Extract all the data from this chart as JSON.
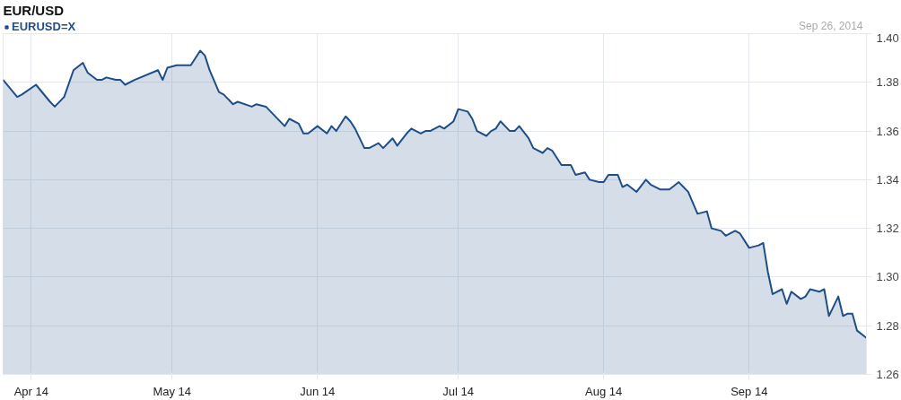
{
  "chart_data": {
    "type": "area",
    "title": "EUR/USD",
    "annotations": [
      "Sep 26, 2014"
    ],
    "legend": "top left",
    "grid": true,
    "xlim": [
      "2014-03-26",
      "2014-09-26"
    ],
    "xticks": [
      {
        "value": "2014-04-01",
        "label": "Apr 14"
      },
      {
        "value": "2014-05-01",
        "label": "May 14"
      },
      {
        "value": "2014-06-01",
        "label": "Jun 14"
      },
      {
        "value": "2014-07-01",
        "label": "Jul 14"
      },
      {
        "value": "2014-08-01",
        "label": "Aug 14"
      },
      {
        "value": "2014-09-01",
        "label": "Sep 14"
      }
    ],
    "ylim": [
      1.26,
      1.4
    ],
    "yticks": [
      1.26,
      1.28,
      {
        "value": 1.3,
        "label": "1.30"
      },
      1.32,
      1.34,
      1.36,
      1.38,
      {
        "value": 1.4,
        "label": "1.40"
      }
    ],
    "series": [
      {
        "name": "EURUSD=X",
        "color": "#1f4e87",
        "x": [
          "2014-03-26",
          "2014-03-29",
          "2014-03-30",
          "2014-04-02",
          "2014-04-05",
          "2014-04-06",
          "2014-04-08",
          "2014-04-10",
          "2014-04-12",
          "2014-04-13",
          "2014-04-15",
          "2014-04-16",
          "2014-04-17",
          "2014-04-19",
          "2014-04-20",
          "2014-04-21",
          "2014-04-23",
          "2014-04-28",
          "2014-04-29",
          "2014-04-30",
          "2014-05-02",
          "2014-05-05",
          "2014-05-07",
          "2014-05-08",
          "2014-05-09",
          "2014-05-11",
          "2014-05-12",
          "2014-05-14",
          "2014-05-15",
          "2014-05-18",
          "2014-05-19",
          "2014-05-21",
          "2014-05-25",
          "2014-05-26",
          "2014-05-28",
          "2014-05-29",
          "2014-05-30",
          "2014-06-01",
          "2014-06-03",
          "2014-06-04",
          "2014-06-05",
          "2014-06-07",
          "2014-06-08",
          "2014-06-09",
          "2014-06-11",
          "2014-06-12",
          "2014-06-14",
          "2014-06-15",
          "2014-06-17",
          "2014-06-18",
          "2014-06-20",
          "2014-06-21",
          "2014-06-23",
          "2014-06-24",
          "2014-06-25",
          "2014-06-27",
          "2014-06-28",
          "2014-06-30",
          "2014-07-01",
          "2014-07-03",
          "2014-07-04",
          "2014-07-05",
          "2014-07-07",
          "2014-07-08",
          "2014-07-09",
          "2014-07-10",
          "2014-07-12",
          "2014-07-13",
          "2014-07-14",
          "2014-07-16",
          "2014-07-17",
          "2014-07-19",
          "2014-07-20",
          "2014-07-21",
          "2014-07-23",
          "2014-07-25",
          "2014-07-26",
          "2014-07-28",
          "2014-07-29",
          "2014-07-31",
          "2014-08-01",
          "2014-08-02",
          "2014-08-04",
          "2014-08-05",
          "2014-08-06",
          "2014-08-08",
          "2014-08-10",
          "2014-08-11",
          "2014-08-13",
          "2014-08-15",
          "2014-08-17",
          "2014-08-19",
          "2014-08-21",
          "2014-08-23",
          "2014-08-24",
          "2014-08-26",
          "2014-08-27",
          "2014-08-29",
          "2014-08-30",
          "2014-09-01",
          "2014-09-03",
          "2014-09-04",
          "2014-09-05",
          "2014-09-06",
          "2014-09-08",
          "2014-09-09",
          "2014-09-10",
          "2014-09-12",
          "2014-09-13",
          "2014-09-14",
          "2014-09-16",
          "2014-09-17",
          "2014-09-18",
          "2014-09-20",
          "2014-09-21",
          "2014-09-22",
          "2014-09-23",
          "2014-09-24",
          "2014-09-26"
        ],
        "values": [
          1.381,
          1.374,
          1.375,
          1.379,
          1.372,
          1.37,
          1.374,
          1.385,
          1.388,
          1.384,
          1.381,
          1.381,
          1.382,
          1.381,
          1.381,
          1.379,
          1.381,
          1.385,
          1.381,
          1.386,
          1.387,
          1.387,
          1.393,
          1.391,
          1.385,
          1.376,
          1.375,
          1.371,
          1.372,
          1.37,
          1.371,
          1.37,
          1.362,
          1.365,
          1.363,
          1.359,
          1.359,
          1.362,
          1.359,
          1.362,
          1.36,
          1.366,
          1.364,
          1.361,
          1.353,
          1.353,
          1.355,
          1.353,
          1.357,
          1.354,
          1.359,
          1.361,
          1.359,
          1.36,
          1.36,
          1.362,
          1.361,
          1.364,
          1.369,
          1.368,
          1.365,
          1.36,
          1.358,
          1.36,
          1.361,
          1.364,
          1.36,
          1.36,
          1.362,
          1.357,
          1.353,
          1.351,
          1.353,
          1.352,
          1.346,
          1.346,
          1.342,
          1.343,
          1.34,
          1.339,
          1.339,
          1.342,
          1.342,
          1.337,
          1.338,
          1.335,
          1.34,
          1.338,
          1.336,
          1.336,
          1.339,
          1.335,
          1.326,
          1.327,
          1.32,
          1.319,
          1.317,
          1.319,
          1.318,
          1.312,
          1.313,
          1.314,
          1.302,
          1.293,
          1.295,
          1.289,
          1.294,
          1.291,
          1.292,
          1.295,
          1.294,
          1.295,
          1.284,
          1.292,
          1.284,
          1.285,
          1.285,
          1.278,
          1.275
        ]
      }
    ]
  }
}
